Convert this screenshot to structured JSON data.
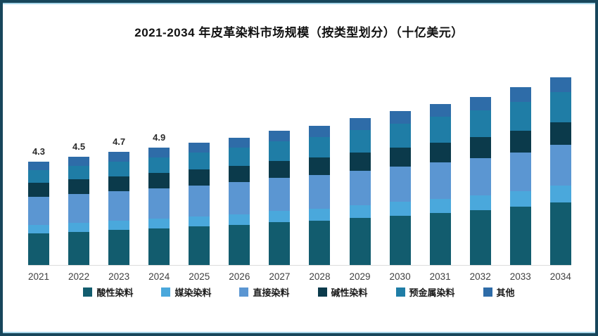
{
  "title": "2021-2034 年皮革染料市场规模（按类型划分）（十亿美元）",
  "frame": {
    "border_color": "#17465B",
    "accent_line_color": "#A9D7EA"
  },
  "chart_data": {
    "type": "bar",
    "subtype": "stacked-vertical",
    "title": "2021-2034 年皮革染料市场规模（按类型划分）（十亿美元）",
    "unit": "十亿美元",
    "xlabel": "",
    "ylabel": "",
    "grid": "off",
    "legend_position": "bottom",
    "ylim": [
      0,
      8.5
    ],
    "categories": [
      "2021",
      "2022",
      "2023",
      "2024",
      "2025",
      "2026",
      "2027",
      "2028",
      "2029",
      "2030",
      "2031",
      "2032",
      "2033",
      "2034"
    ],
    "totals": [
      4.3,
      4.5,
      4.7,
      4.9,
      5.1,
      5.3,
      5.6,
      5.8,
      6.1,
      6.4,
      6.7,
      7.0,
      7.4,
      7.8
    ],
    "bar_labels": [
      "4.3",
      "4.5",
      "4.7",
      "4.9",
      "",
      "",
      "",
      "",
      "",
      "",
      "",
      "",
      "",
      ""
    ],
    "series": [
      {
        "name": "酸性染料",
        "color": "#125C6E",
        "values": [
          1.32,
          1.39,
          1.46,
          1.53,
          1.6,
          1.67,
          1.78,
          1.85,
          1.96,
          2.06,
          2.17,
          2.28,
          2.42,
          2.6
        ]
      },
      {
        "name": "媒染染料",
        "color": "#4AA8DC",
        "values": [
          0.35,
          0.37,
          0.39,
          0.41,
          0.43,
          0.45,
          0.48,
          0.5,
          0.53,
          0.56,
          0.59,
          0.62,
          0.66,
          0.72
        ]
      },
      {
        "name": "直接染料",
        "color": "#5B96D2",
        "values": [
          1.17,
          1.2,
          1.23,
          1.26,
          1.29,
          1.32,
          1.36,
          1.39,
          1.43,
          1.47,
          1.51,
          1.55,
          1.6,
          1.68
        ]
      },
      {
        "name": "碱性染料",
        "color": "#0B3A4B",
        "values": [
          0.58,
          0.6,
          0.62,
          0.64,
          0.66,
          0.68,
          0.71,
          0.73,
          0.76,
          0.79,
          0.83,
          0.86,
          0.9,
          0.94
        ]
      },
      {
        "name": "预金属染料",
        "color": "#1F7DA6",
        "values": [
          0.53,
          0.57,
          0.61,
          0.65,
          0.7,
          0.75,
          0.82,
          0.86,
          0.93,
          0.99,
          1.06,
          1.12,
          1.21,
          1.25
        ]
      },
      {
        "name": "其他",
        "color": "#2E6CA8",
        "values": [
          0.35,
          0.37,
          0.39,
          0.41,
          0.42,
          0.43,
          0.45,
          0.47,
          0.49,
          0.53,
          0.54,
          0.57,
          0.61,
          0.61
        ]
      }
    ]
  }
}
